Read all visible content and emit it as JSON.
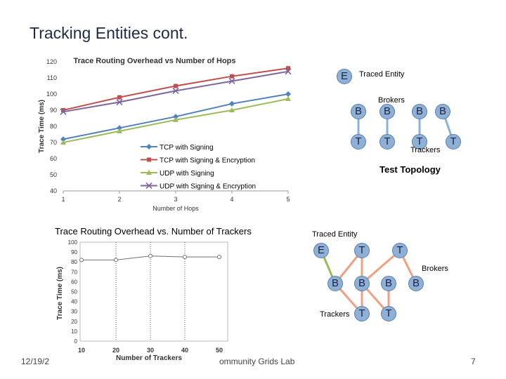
{
  "slide": {
    "title": "Tracking Entities cont.",
    "footer_date": "12/19/2",
    "footer_org": "ommunity Grids Lab",
    "page_number": "7"
  },
  "chart_data": [
    {
      "type": "line",
      "title": "Trace Routing Overhead vs Number of Hops",
      "xlabel": "Number of Hops",
      "ylabel": "Trace Time (ms)",
      "x": [
        1,
        2,
        3,
        4,
        5
      ],
      "xticks": [
        "1",
        "2",
        "3",
        "4",
        "5"
      ],
      "yticks": [
        "40",
        "50",
        "60",
        "70",
        "80",
        "90",
        "100",
        "110",
        "120"
      ],
      "ylim": [
        40,
        120
      ],
      "legend_position": "center",
      "series": [
        {
          "name": "TCP with Signing",
          "values": [
            72,
            79,
            86,
            94,
            100
          ],
          "color": "#4f81bd",
          "marker": "diamond"
        },
        {
          "name": "TCP with Signing & Encryption",
          "values": [
            90,
            98,
            105,
            111,
            116
          ],
          "color": "#c0504d",
          "marker": "square"
        },
        {
          "name": "UDP with Signing",
          "values": [
            70,
            77,
            84,
            90,
            97
          ],
          "color": "#9bbb59",
          "marker": "triangle"
        },
        {
          "name": "UDP with Signing & Encryption",
          "values": [
            89,
            95,
            102,
            108,
            114
          ],
          "color": "#8064a2",
          "marker": "x"
        }
      ]
    },
    {
      "type": "line",
      "title": "Trace Routing Overhead vs. Number of Trackers",
      "xlabel": "Number of Trackers",
      "ylabel": "Trace Time (ms)",
      "x": [
        10,
        20,
        30,
        40,
        50
      ],
      "xticks": [
        "10",
        "20",
        "30",
        "40",
        "50"
      ],
      "yticks": [
        "0",
        "10",
        "20",
        "30",
        "40",
        "50",
        "60",
        "70",
        "80",
        "90",
        "100"
      ],
      "ylim": [
        0,
        100
      ],
      "grid": "vertical dotted lines",
      "series": [
        {
          "values": [
            82,
            82,
            86,
            85,
            85
          ],
          "color": "#707070"
        }
      ]
    }
  ],
  "topology1": {
    "entity_node": "E",
    "entity_label": "Traced Entity",
    "brokers_label": "Brokers",
    "broker_nodes": [
      "B",
      "B",
      "B",
      "B"
    ],
    "tracker_nodes": [
      "T",
      "T",
      "T",
      "T"
    ],
    "trackers_label": "Trackers",
    "caption": "Test Topology"
  },
  "topology2": {
    "entity_label": "Traced Entity",
    "entity_node": "E",
    "top_tracker_nodes": [
      "T",
      "T"
    ],
    "brokers_label": "Brokers",
    "broker_nodes": [
      "B",
      "B",
      "B",
      "B"
    ],
    "trackers_label": "Trackers",
    "bottom_tracker_nodes": [
      "T",
      "T"
    ]
  }
}
